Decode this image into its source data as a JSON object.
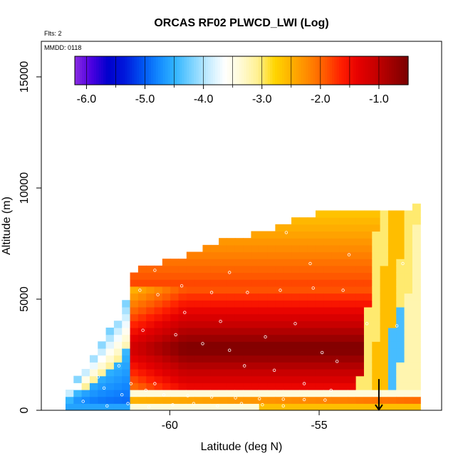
{
  "chart_data": {
    "type": "heatmap",
    "title": "ORCAS RF02 PLWCD_LWI (Log)",
    "subtitle_flights": "Flts: 2",
    "subtitle_date": "MMDD: 0118",
    "xlabel": "Latitude (deg N)",
    "ylabel": "Altitude (m)",
    "xlim": [
      -64.3,
      -50.9
    ],
    "ylim": [
      0,
      16600
    ],
    "x_ticks": [
      -60,
      -55
    ],
    "x_tick_labels": [
      "-60",
      "-55"
    ],
    "y_ticks": [
      0,
      5000,
      10000,
      15000
    ],
    "y_tick_labels": [
      "0",
      "5000",
      "10000",
      "15000"
    ],
    "colorbar": {
      "range": [
        -6.2,
        -0.5
      ],
      "ticks": [
        -6,
        -5,
        -4,
        -3,
        -2,
        -1
      ],
      "tick_labels": [
        "-6.0",
        "-5.0",
        "-4.0",
        "-3.0",
        "-2.0",
        "-1.0"
      ],
      "colors": [
        "#8a2be2",
        "#4b00e0",
        "#0000cd",
        "#0018dc",
        "#0050f0",
        "#1288ff",
        "#30b4ff",
        "#7ad2ff",
        "#c4ecff",
        "#ffffff",
        "#fffad2",
        "#fff090",
        "#ffd500",
        "#ffb000",
        "#ff8800",
        "#ff5a00",
        "#ff1e00",
        "#e60000",
        "#c80000",
        "#a00000",
        "#7a0000"
      ]
    },
    "field_model": {
      "envelope": [
        [
          -63.4,
          0,
          800
        ],
        [
          -62.8,
          0,
          2000
        ],
        [
          -62.3,
          0,
          3000
        ],
        [
          -61.8,
          0,
          4000
        ],
        [
          -61.5,
          0,
          4700
        ],
        [
          -61.2,
          0,
          6300
        ],
        [
          -59.5,
          0,
          7000
        ],
        [
          -58.0,
          0,
          7700
        ],
        [
          -56.5,
          0,
          8200
        ],
        [
          -55.5,
          0,
          8700
        ],
        [
          -54.5,
          0,
          9000
        ],
        [
          -53.5,
          0,
          9000
        ],
        [
          -52.8,
          0,
          8900
        ],
        [
          -52.2,
          0,
          9000
        ],
        [
          -51.6,
          0,
          9200
        ]
      ],
      "core_value": -0.8,
      "edge_value": -2.6,
      "notes": "Log10 liquid water content field, strongest (dark red) in a wedge between -59.5 and -53.7 deg N from ~800 m to ~5500 m, decreasing to yellow/orange above and to the north edge, with a thin white/cyan band and blue cells at the lower-left and southern flank."
    },
    "sample_points": [
      [
        -62.4,
        1500
      ],
      [
        -61.7,
        2000
      ],
      [
        -61.3,
        1200
      ],
      [
        -60.8,
        900
      ],
      [
        -60.2,
        700
      ],
      [
        -59.4,
        650
      ],
      [
        -58.6,
        600
      ],
      [
        -57.8,
        560
      ],
      [
        -57.0,
        520
      ],
      [
        -56.2,
        500
      ],
      [
        -55.5,
        480
      ],
      [
        -54.8,
        460
      ],
      [
        -61.0,
        5400
      ],
      [
        -60.4,
        5200
      ],
      [
        -59.6,
        5600
      ],
      [
        -58.6,
        5300
      ],
      [
        -57.4,
        5300
      ],
      [
        -56.3,
        5400
      ],
      [
        -55.2,
        5500
      ],
      [
        -54.2,
        5400
      ],
      [
        -60.9,
        3600
      ],
      [
        -59.8,
        3400
      ],
      [
        -58.9,
        3000
      ],
      [
        -58.0,
        2700
      ],
      [
        -56.8,
        3300
      ],
      [
        -55.8,
        3900
      ],
      [
        -54.9,
        2600
      ],
      [
        -54.4,
        2200
      ],
      [
        -56.5,
        1800
      ],
      [
        -57.5,
        2000
      ],
      [
        -58.3,
        4000
      ],
      [
        -59.5,
        4400
      ],
      [
        -55.3,
        6600
      ],
      [
        -54.0,
        7000
      ],
      [
        -56.1,
        8000
      ],
      [
        -58.0,
        6200
      ],
      [
        -60.5,
        6300
      ],
      [
        -53.4,
        3900
      ],
      [
        -52.4,
        3800
      ],
      [
        -52.2,
        6600
      ],
      [
        -62.9,
        400
      ],
      [
        -62.1,
        200
      ],
      [
        -61.4,
        300
      ],
      [
        -60.7,
        150
      ],
      [
        -59.9,
        250
      ],
      [
        -59.2,
        300
      ],
      [
        -58.4,
        200
      ],
      [
        -57.6,
        300
      ],
      [
        -56.9,
        250
      ],
      [
        -56.2,
        200
      ],
      [
        -62.2,
        1000
      ],
      [
        -61.6,
        700
      ],
      [
        -60.5,
        1200
      ],
      [
        -62.5,
        2600
      ],
      [
        -55.5,
        1200
      ],
      [
        -54.6,
        900
      ]
    ],
    "flight_end_marker": {
      "lat": -53.0,
      "alt": 700,
      "symbol": "down-arrow"
    }
  }
}
